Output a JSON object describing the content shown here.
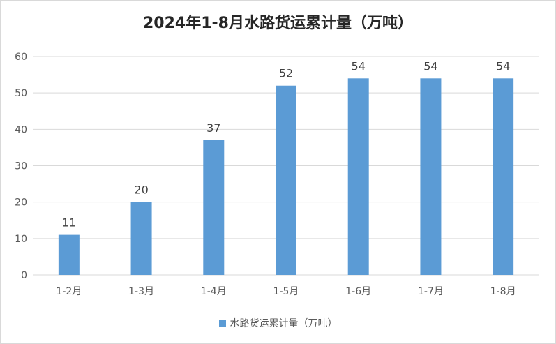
{
  "chart_data": {
    "type": "bar",
    "title": "2024年1-8月水路货运累计量（万吨）",
    "categories": [
      "1-2月",
      "1-3月",
      "1-4月",
      "1-5月",
      "1-6月",
      "1-7月",
      "1-8月"
    ],
    "series": [
      {
        "name": "水路货运累计量（万吨）",
        "values": [
          11,
          20,
          37,
          52,
          54,
          54,
          54
        ],
        "color": "#5b9bd5"
      }
    ],
    "yticks": [
      "0",
      "10",
      "20",
      "30",
      "40",
      "50",
      "60"
    ],
    "ylim": [
      0,
      60
    ],
    "grid": true,
    "legend_position": "bottom"
  }
}
